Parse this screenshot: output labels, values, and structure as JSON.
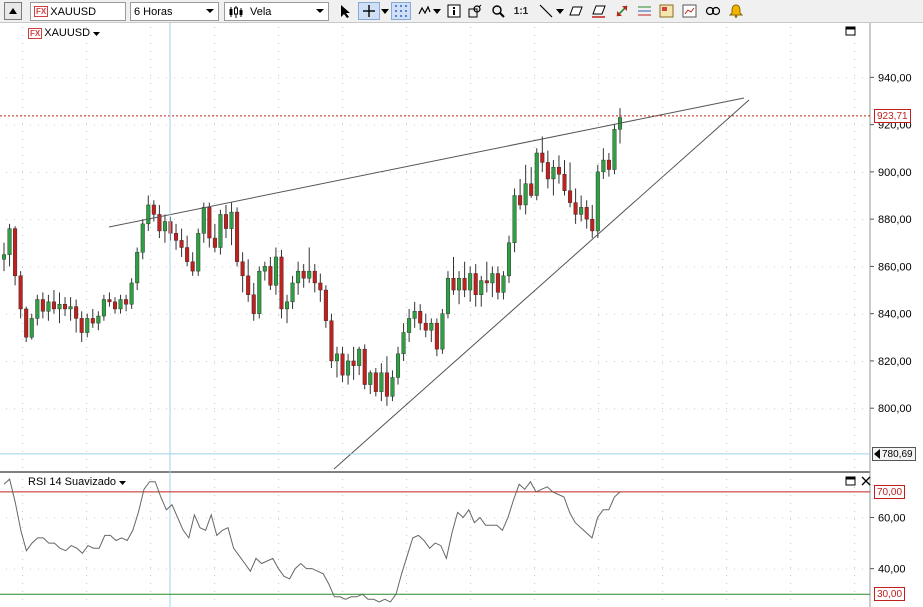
{
  "toolbar": {
    "symbol": "XAUUSD",
    "fx_badge": "FX",
    "timeframe": "6 Horas",
    "chart_type": "Vela",
    "zoom_ratio": "1:1"
  },
  "main_pane": {
    "symbol_label": "XAUUSD",
    "fx_badge": "FX",
    "price_ticks": [
      "940,00",
      "920,00",
      "900,00",
      "880,00",
      "860,00",
      "840,00",
      "820,00",
      "800,00"
    ],
    "last_price": "923,71",
    "crosshair_price": "780,69"
  },
  "rsi_pane": {
    "title": "RSI 14 Suavizado",
    "ticks": [
      "60,00",
      "40,00"
    ],
    "level_high": "70,00",
    "level_low": "30,00"
  },
  "colors": {
    "up": "#2ea043",
    "down": "#c0201e",
    "last_price_line": "#c0201e",
    "crosshair": "#9fd2e8",
    "rsi_line": "#666666",
    "level_high": "#c0201e",
    "level_low": "#2a8a2a"
  },
  "chart_data": {
    "type": "candlestick",
    "y_range": [
      773,
      963
    ],
    "rsi_range": [
      25,
      77
    ],
    "rsi_levels": [
      70,
      30
    ],
    "candles": [
      [
        863,
        870,
        858,
        865
      ],
      [
        865,
        878,
        860,
        876
      ],
      [
        876,
        877,
        852,
        856
      ],
      [
        856,
        858,
        838,
        842
      ],
      [
        842,
        843,
        828,
        830
      ],
      [
        830,
        840,
        829,
        838
      ],
      [
        838,
        848,
        835,
        846
      ],
      [
        846,
        849,
        838,
        841
      ],
      [
        841,
        848,
        837,
        845
      ],
      [
        845,
        850,
        840,
        842
      ],
      [
        842,
        849,
        836,
        844
      ],
      [
        844,
        847,
        839,
        842
      ],
      [
        842,
        847,
        837,
        843
      ],
      [
        843,
        846,
        832,
        838
      ],
      [
        838,
        841,
        828,
        832
      ],
      [
        832,
        840,
        830,
        838
      ],
      [
        838,
        842,
        834,
        836
      ],
      [
        836,
        841,
        833,
        839
      ],
      [
        839,
        848,
        837,
        846
      ],
      [
        846,
        849,
        843,
        845
      ],
      [
        845,
        847,
        840,
        842
      ],
      [
        842,
        848,
        840,
        846
      ],
      [
        846,
        848,
        841,
        844
      ],
      [
        844,
        855,
        842,
        853
      ],
      [
        853,
        868,
        850,
        866
      ],
      [
        866,
        880,
        863,
        878
      ],
      [
        878,
        890,
        875,
        886
      ],
      [
        886,
        888,
        879,
        882
      ],
      [
        882,
        886,
        872,
        875
      ],
      [
        875,
        882,
        870,
        879
      ],
      [
        879,
        881,
        871,
        874
      ],
      [
        874,
        878,
        867,
        871
      ],
      [
        871,
        876,
        864,
        868
      ],
      [
        868,
        873,
        860,
        862
      ],
      [
        862,
        866,
        856,
        858
      ],
      [
        858,
        876,
        856,
        874
      ],
      [
        874,
        887,
        870,
        885
      ],
      [
        885,
        887,
        868,
        872
      ],
      [
        872,
        878,
        866,
        868
      ],
      [
        868,
        884,
        865,
        882
      ],
      [
        882,
        886,
        872,
        876
      ],
      [
        876,
        887,
        869,
        883
      ],
      [
        883,
        885,
        860,
        862
      ],
      [
        862,
        866,
        849,
        856
      ],
      [
        856,
        863,
        845,
        848
      ],
      [
        848,
        853,
        837,
        840
      ],
      [
        840,
        860,
        838,
        858
      ],
      [
        858,
        862,
        854,
        860
      ],
      [
        860,
        864,
        850,
        852
      ],
      [
        852,
        868,
        848,
        864
      ],
      [
        864,
        867,
        838,
        842
      ],
      [
        842,
        848,
        836,
        845
      ],
      [
        845,
        856,
        842,
        853
      ],
      [
        853,
        862,
        848,
        858
      ],
      [
        858,
        861,
        851,
        855
      ],
      [
        855,
        868,
        853,
        858
      ],
      [
        858,
        861,
        849,
        853
      ],
      [
        853,
        857,
        845,
        850
      ],
      [
        850,
        852,
        834,
        837
      ],
      [
        837,
        840,
        817,
        820
      ],
      [
        820,
        826,
        813,
        823
      ],
      [
        823,
        826,
        811,
        814
      ],
      [
        814,
        823,
        810,
        820
      ],
      [
        820,
        826,
        812,
        818
      ],
      [
        818,
        826,
        814,
        825
      ],
      [
        825,
        827,
        808,
        810
      ],
      [
        810,
        816,
        806,
        815
      ],
      [
        815,
        817,
        805,
        807
      ],
      [
        807,
        819,
        803,
        815
      ],
      [
        815,
        822,
        801,
        805
      ],
      [
        805,
        816,
        803,
        813
      ],
      [
        813,
        826,
        810,
        823
      ],
      [
        823,
        836,
        820,
        832
      ],
      [
        832,
        842,
        828,
        838
      ],
      [
        838,
        845,
        834,
        841
      ],
      [
        841,
        844,
        833,
        836
      ],
      [
        836,
        840,
        830,
        833
      ],
      [
        833,
        838,
        828,
        836
      ],
      [
        836,
        838,
        822,
        825
      ],
      [
        825,
        842,
        823,
        840
      ],
      [
        840,
        858,
        838,
        855
      ],
      [
        855,
        864,
        848,
        850
      ],
      [
        850,
        858,
        844,
        855
      ],
      [
        855,
        862,
        847,
        850
      ],
      [
        850,
        860,
        845,
        857
      ],
      [
        857,
        861,
        843,
        848
      ],
      [
        848,
        856,
        843,
        854
      ],
      [
        854,
        862,
        849,
        853
      ],
      [
        853,
        860,
        847,
        857
      ],
      [
        857,
        860,
        846,
        849
      ],
      [
        849,
        858,
        846,
        856
      ],
      [
        856,
        873,
        853,
        870
      ],
      [
        870,
        893,
        866,
        890
      ],
      [
        890,
        897,
        884,
        886
      ],
      [
        886,
        903,
        882,
        895
      ],
      [
        895,
        902,
        889,
        890
      ],
      [
        890,
        910,
        888,
        908
      ],
      [
        908,
        915,
        900,
        904
      ],
      [
        904,
        909,
        893,
        897
      ],
      [
        897,
        905,
        890,
        902
      ],
      [
        902,
        907,
        895,
        899
      ],
      [
        899,
        905,
        890,
        892
      ],
      [
        892,
        904,
        885,
        887
      ],
      [
        887,
        893,
        878,
        882
      ],
      [
        882,
        890,
        879,
        885
      ],
      [
        885,
        888,
        876,
        880
      ],
      [
        880,
        886,
        872,
        875
      ],
      [
        875,
        903,
        872,
        900
      ],
      [
        900,
        910,
        897,
        905
      ],
      [
        905,
        908,
        898,
        901
      ],
      [
        901,
        920,
        899,
        918
      ],
      [
        918,
        927,
        912,
        923
      ]
    ],
    "rsi": [
      73,
      75,
      66,
      55,
      47,
      50,
      52,
      52,
      50,
      50,
      48,
      47,
      49,
      48,
      46,
      49,
      48,
      48,
      53,
      53,
      51,
      52,
      51,
      55,
      62,
      71,
      74,
      74,
      68,
      63,
      65,
      60,
      55,
      52,
      61,
      56,
      55,
      61,
      53,
      55,
      56,
      48,
      45,
      42,
      39,
      44,
      42,
      43,
      44,
      40,
      37,
      36,
      40,
      42,
      40,
      40,
      39,
      38,
      34,
      29,
      29,
      28,
      29,
      29,
      30,
      28,
      28,
      27,
      28,
      27,
      30,
      38,
      45,
      52,
      53,
      51,
      48,
      50,
      49,
      44,
      54,
      62,
      60,
      63,
      58,
      60,
      57,
      57,
      57,
      55,
      60,
      67,
      73,
      71,
      74,
      70,
      71,
      72,
      70,
      69,
      68,
      62,
      58,
      56,
      54,
      52,
      60,
      63,
      63,
      68,
      70
    ],
    "trendlines": [
      [
        109,
        204,
        744,
        75
      ],
      [
        334,
        446,
        749,
        77
      ]
    ],
    "crosshair_x": 170,
    "crosshair_price_value": 780.69,
    "last_price_value": 923.71
  }
}
